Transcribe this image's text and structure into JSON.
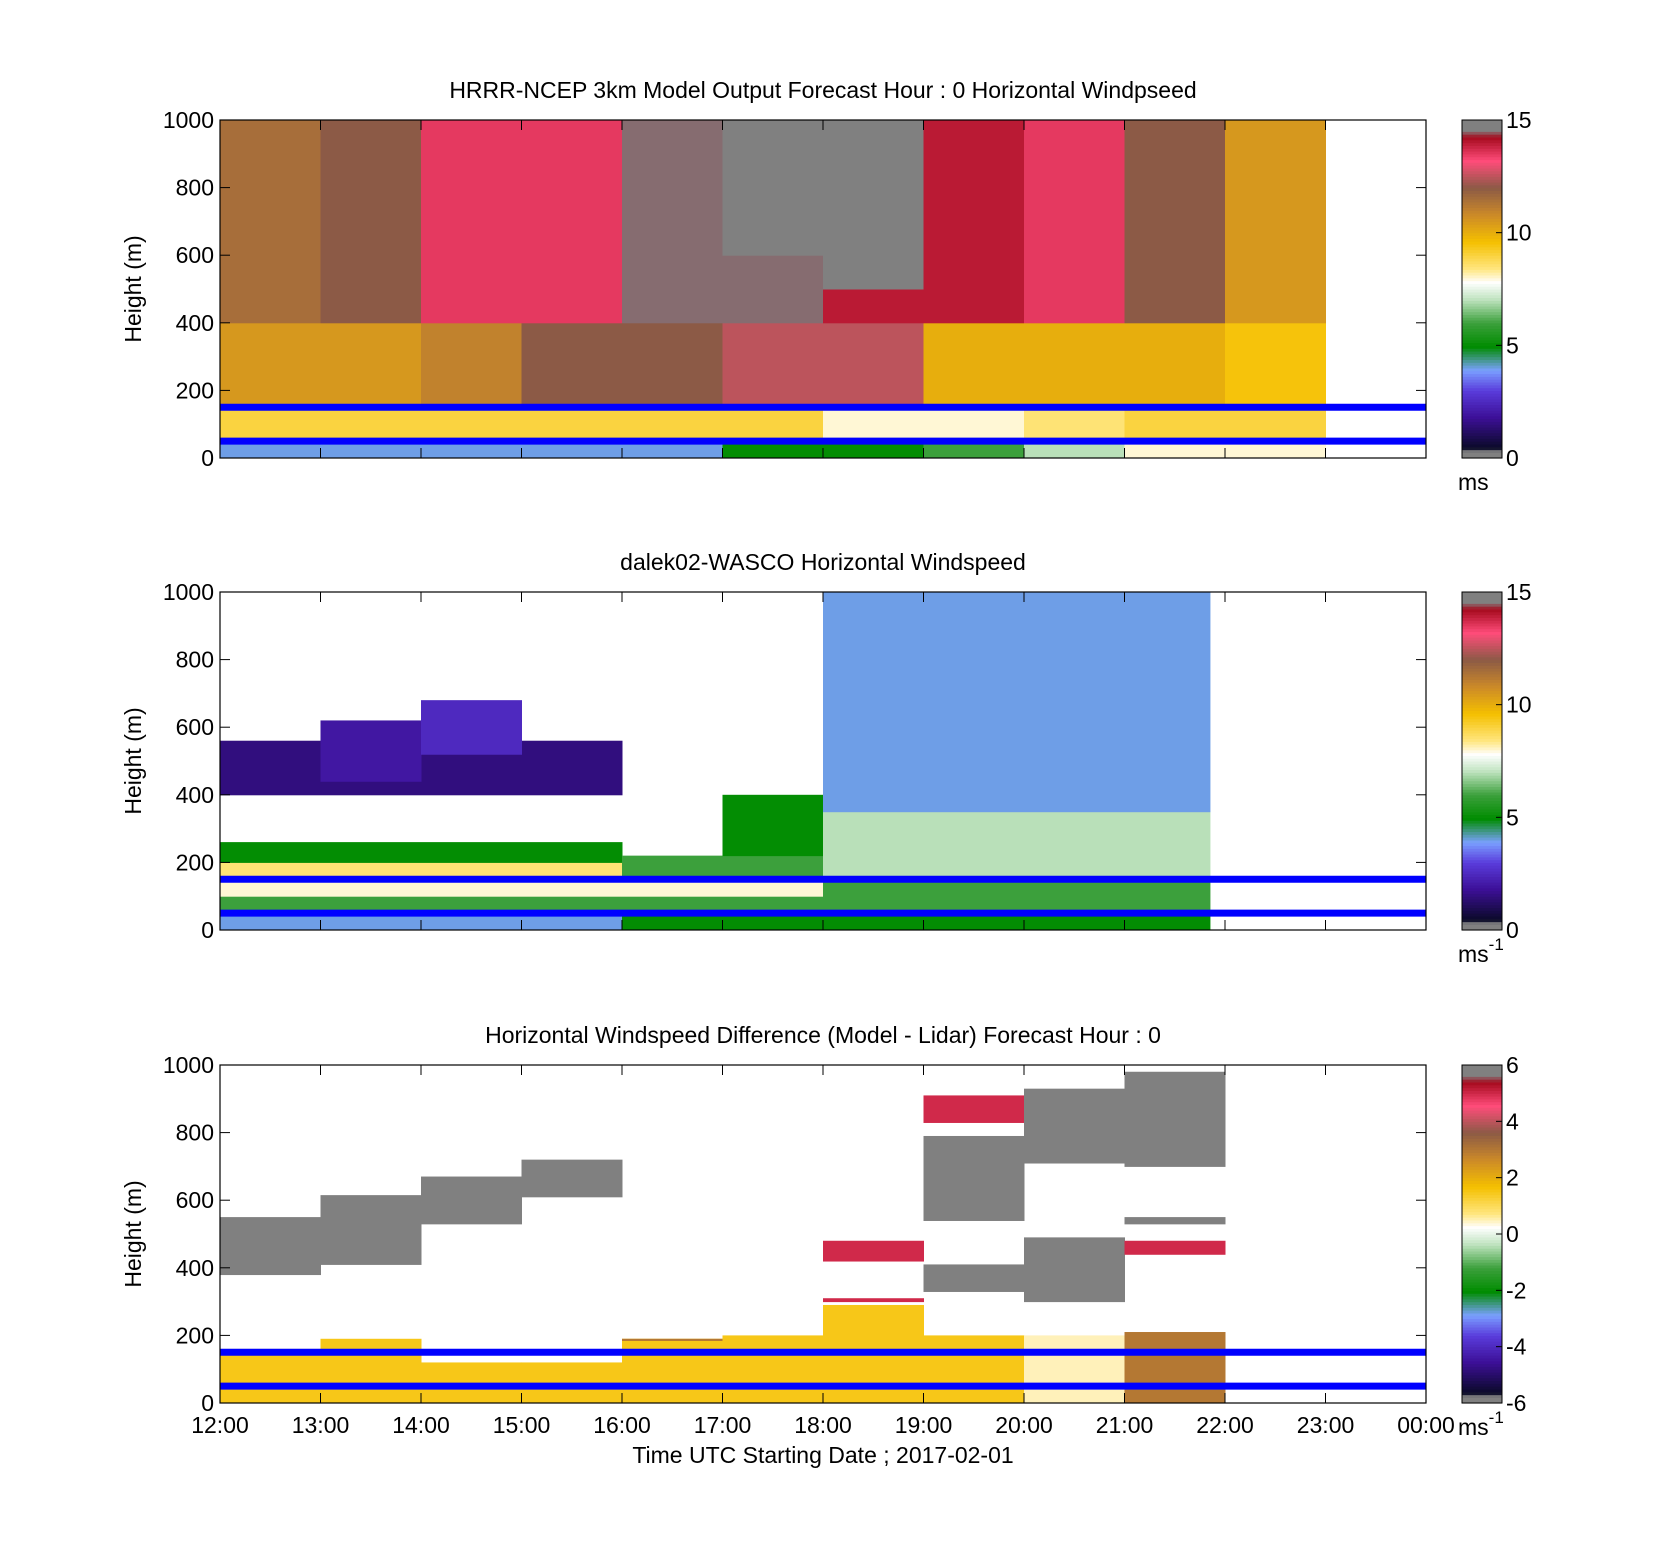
{
  "colors": {
    "guide_line": "#0000ff",
    "no_data": "#ffffff",
    "frame": "#000000"
  },
  "x_axis": {
    "tick_labels": [
      "12:00",
      "13:00",
      "14:00",
      "15:00",
      "16:00",
      "17:00",
      "18:00",
      "19:00",
      "20:00",
      "21:00",
      "22:00",
      "23:00",
      "00:00"
    ],
    "label": "Time UTC  Starting Date ; 2017-02-01"
  },
  "y_axis": {
    "label": "Height (m)",
    "tick_labels": [
      "0",
      "200",
      "400",
      "600",
      "800",
      "1000"
    ]
  },
  "panels": [
    {
      "title": "HRRR-NCEP 3km Model Output   Forecast Hour : 0 Horizontal Windpseed",
      "colorbar_ticks": [
        "0",
        "5",
        "10",
        "15"
      ],
      "colorbar_unit": "ms",
      "colorbar_unit_sup": ""
    },
    {
      "title": "dalek02-WASCO  Horizontal Windspeed",
      "colorbar_ticks": [
        "0",
        "5",
        "10",
        "15"
      ],
      "colorbar_unit": "ms",
      "colorbar_unit_sup": "-1"
    },
    {
      "title": "Horizontal Windspeed Difference (Model - Lidar) Forecast Hour : 0",
      "colorbar_ticks": [
        "-6",
        "-4",
        "-2",
        "0",
        "2",
        "4",
        "6"
      ],
      "colorbar_unit": "ms",
      "colorbar_unit_sup": "-1"
    }
  ],
  "chart_data": [
    {
      "type": "heatmap",
      "title": "HRRR-NCEP 3km Model Output   Forecast Hour : 0 Horizontal Windpseed",
      "xlabel": "",
      "ylabel": "Height (m)",
      "x_range_hours_utc": [
        12,
        24
      ],
      "ylim": [
        0,
        1000
      ],
      "zlim": [
        0,
        15
      ],
      "colorbar_unit": "ms",
      "reference_heights_m": [
        150,
        50
      ],
      "cells": [
        {
          "t0": 12,
          "t1": 13,
          "values": [
            [
              0,
              50,
              4
            ],
            [
              50,
              150,
              9
            ],
            [
              150,
              400,
              10.5
            ],
            [
              400,
              1000,
              11.5
            ]
          ]
        },
        {
          "t0": 13,
          "t1": 14,
          "values": [
            [
              0,
              50,
              4
            ],
            [
              50,
              150,
              9
            ],
            [
              150,
              400,
              10.5
            ],
            [
              400,
              1000,
              12
            ]
          ]
        },
        {
          "t0": 14,
          "t1": 15,
          "values": [
            [
              0,
              50,
              4
            ],
            [
              50,
              150,
              9
            ],
            [
              150,
              400,
              11
            ],
            [
              400,
              1000,
              13.5
            ]
          ]
        },
        {
          "t0": 15,
          "t1": 16,
          "values": [
            [
              0,
              50,
              4
            ],
            [
              50,
              150,
              9
            ],
            [
              150,
              400,
              12
            ],
            [
              400,
              1000,
              13.5
            ]
          ]
        },
        {
          "t0": 16,
          "t1": 17,
          "values": [
            [
              0,
              50,
              4
            ],
            [
              50,
              150,
              9
            ],
            [
              150,
              400,
              12
            ],
            [
              400,
              1000,
              14.5
            ]
          ]
        },
        {
          "t0": 17,
          "t1": 18,
          "values": [
            [
              0,
              50,
              5
            ],
            [
              50,
              150,
              9
            ],
            [
              150,
              400,
              12.5
            ],
            [
              400,
              600,
              14.5
            ],
            [
              600,
              1000,
              15
            ]
          ]
        },
        {
          "t0": 18,
          "t1": 19,
          "values": [
            [
              0,
              50,
              5
            ],
            [
              50,
              150,
              8
            ],
            [
              150,
              400,
              12.5
            ],
            [
              400,
              500,
              14
            ],
            [
              500,
              1000,
              15
            ]
          ]
        },
        {
          "t0": 19,
          "t1": 20,
          "values": [
            [
              0,
              50,
              6
            ],
            [
              50,
              150,
              8
            ],
            [
              150,
              400,
              10
            ],
            [
              400,
              1000,
              14
            ]
          ]
        },
        {
          "t0": 20,
          "t1": 21,
          "values": [
            [
              0,
              50,
              7
            ],
            [
              50,
              150,
              8.5
            ],
            [
              150,
              400,
              10
            ],
            [
              400,
              1000,
              13.5
            ]
          ]
        },
        {
          "t0": 21,
          "t1": 22,
          "values": [
            [
              0,
              50,
              8
            ],
            [
              50,
              150,
              9
            ],
            [
              150,
              400,
              10
            ],
            [
              400,
              1000,
              12
            ]
          ]
        },
        {
          "t0": 22,
          "t1": 23,
          "values": [
            [
              0,
              50,
              8
            ],
            [
              50,
              150,
              9
            ],
            [
              150,
              400,
              9.5
            ],
            [
              400,
              1000,
              10.5
            ]
          ]
        }
      ]
    },
    {
      "type": "heatmap",
      "title": "dalek02-WASCO  Horizontal Windspeed",
      "xlabel": "",
      "ylabel": "Height (m)",
      "x_range_hours_utc": [
        12,
        24
      ],
      "ylim": [
        0,
        1000
      ],
      "zlim": [
        0,
        15
      ],
      "colorbar_unit": "ms-1",
      "reference_heights_m": [
        150,
        50
      ],
      "data_extent_hours_utc": [
        12,
        21.85
      ],
      "cells": [
        {
          "t0": 12,
          "t1": 16,
          "values": [
            [
              0,
              50,
              4
            ],
            [
              50,
              100,
              6
            ],
            [
              100,
              150,
              8
            ],
            [
              150,
              200,
              8.5
            ],
            [
              200,
              260,
              5
            ],
            [
              400,
              560,
              1.5
            ]
          ]
        },
        {
          "t0": 13,
          "t1": 14,
          "values": [
            [
              440,
              620,
              2
            ]
          ]
        },
        {
          "t0": 14,
          "t1": 15,
          "values": [
            [
              520,
              680,
              2.5
            ]
          ]
        },
        {
          "t0": 16,
          "t1": 18,
          "values": [
            [
              0,
              50,
              5
            ],
            [
              50,
              100,
              6
            ],
            [
              100,
              150,
              8
            ],
            [
              150,
              220,
              6
            ]
          ]
        },
        {
          "t0": 17,
          "t1": 18,
          "values": [
            [
              220,
              400,
              5
            ]
          ]
        },
        {
          "t0": 18,
          "t1": 20,
          "values": [
            [
              0,
              50,
              5
            ],
            [
              50,
              150,
              6
            ],
            [
              150,
              350,
              7
            ],
            [
              350,
              1000,
              4
            ]
          ]
        },
        {
          "t0": 20,
          "t1": 21.85,
          "values": [
            [
              0,
              50,
              5
            ],
            [
              50,
              150,
              6
            ],
            [
              150,
              350,
              7
            ],
            [
              350,
              1000,
              4
            ]
          ]
        }
      ]
    },
    {
      "type": "heatmap",
      "title": "Horizontal Windspeed Difference (Model - Lidar) Forecast Hour : 0",
      "xlabel": "Time UTC  Starting Date ; 2017-02-01",
      "ylabel": "Height (m)",
      "x_range_hours_utc": [
        12,
        24
      ],
      "ylim": [
        0,
        1000
      ],
      "zlim": [
        -6,
        6
      ],
      "colorbar_unit": "ms-1",
      "reference_heights_m": [
        150,
        50
      ],
      "cells": [
        {
          "t0": 12,
          "t1": 13,
          "values": [
            [
              0,
              160,
              1.5
            ],
            [
              380,
              550,
              6
            ]
          ]
        },
        {
          "t0": 13,
          "t1": 14,
          "values": [
            [
              0,
              190,
              1.5
            ],
            [
              410,
              615,
              6
            ]
          ]
        },
        {
          "t0": 14,
          "t1": 15,
          "values": [
            [
              0,
              120,
              1.5
            ],
            [
              530,
              670,
              6
            ]
          ]
        },
        {
          "t0": 15,
          "t1": 16,
          "values": [
            [
              0,
              120,
              1.5
            ],
            [
              610,
              720,
              6
            ]
          ]
        },
        {
          "t0": 16,
          "t1": 17,
          "values": [
            [
              0,
              190,
              1.5
            ],
            [
              185,
              190,
              3
            ]
          ]
        },
        {
          "t0": 17,
          "t1": 18,
          "values": [
            [
              0,
              200,
              1.5
            ]
          ]
        },
        {
          "t0": 18,
          "t1": 19,
          "values": [
            [
              0,
              290,
              1.5
            ],
            [
              300,
              310,
              5
            ],
            [
              420,
              480,
              5
            ]
          ]
        },
        {
          "t0": 19,
          "t1": 20,
          "values": [
            [
              0,
              200,
              1.5
            ],
            [
              330,
              410,
              6
            ],
            [
              540,
              790,
              6
            ],
            [
              830,
              910,
              5
            ]
          ]
        },
        {
          "t0": 20,
          "t1": 21,
          "values": [
            [
              0,
              200,
              0.5
            ],
            [
              300,
              490,
              6
            ],
            [
              710,
              930,
              6
            ]
          ]
        },
        {
          "t0": 21,
          "t1": 22,
          "values": [
            [
              0,
              210,
              3
            ],
            [
              440,
              480,
              5
            ],
            [
              530,
              550,
              6
            ],
            [
              700,
              980,
              6
            ]
          ]
        }
      ]
    }
  ]
}
